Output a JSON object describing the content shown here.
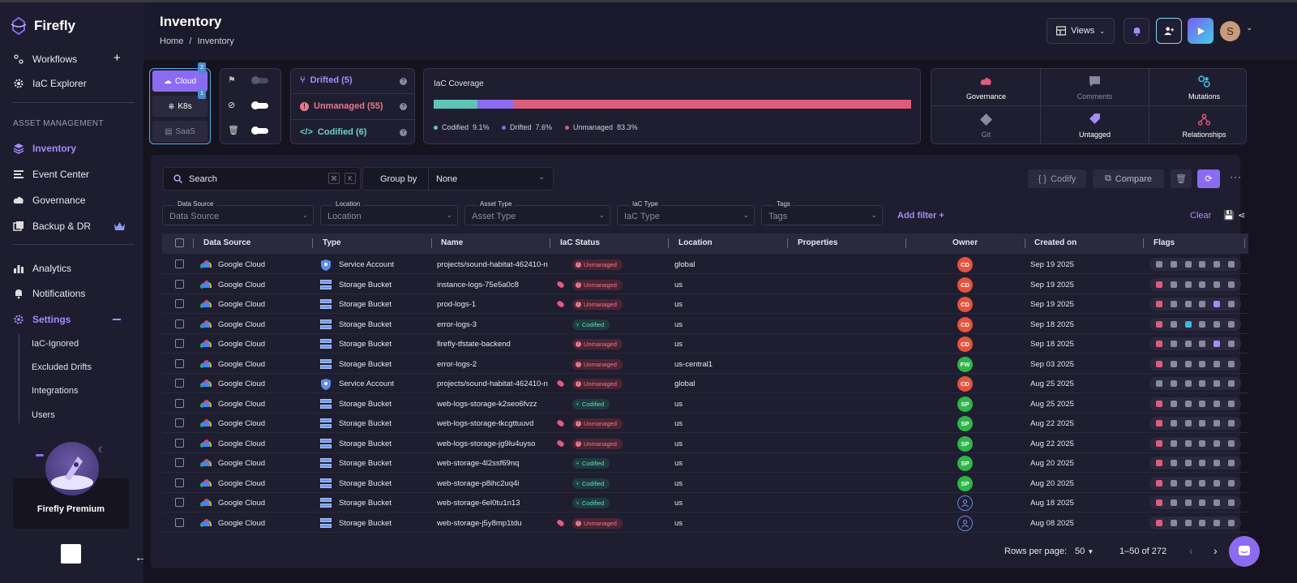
{
  "app": {
    "name": "Firefly"
  },
  "sidebar": {
    "top_items": [
      {
        "label": "Workflows"
      },
      {
        "label": "IaC Explorer"
      }
    ],
    "section_label": "ASSET MANAGEMENT",
    "items": [
      {
        "label": "Inventory"
      },
      {
        "label": "Event Center"
      },
      {
        "label": "Governance"
      },
      {
        "label": "Backup & DR"
      },
      {
        "label": "Analytics"
      },
      {
        "label": "Notifications"
      },
      {
        "label": "Settings"
      }
    ],
    "settings_sub": [
      {
        "label": "IaC-Ignored"
      },
      {
        "label": "Excluded Drifts"
      },
      {
        "label": "Integrations"
      },
      {
        "label": "Users"
      }
    ],
    "premium_label": "Firefly Premium"
  },
  "header": {
    "title": "Inventory",
    "breadcrumb": [
      "Home",
      "/",
      "Inventory"
    ],
    "views_label": "Views",
    "avatar_initial": "S"
  },
  "provider_pills": [
    {
      "label": "Cloud",
      "badge": "2"
    },
    {
      "label": "K8s",
      "badge": "1"
    },
    {
      "label": "SaaS"
    }
  ],
  "drift": {
    "drifted": "Drifted (5)",
    "unmanaged": "Unmanaged (55)",
    "codified": "Codified (6)"
  },
  "coverage": {
    "title": "IaC Coverage",
    "segments": [
      {
        "name": "Codified",
        "pct": 9.1,
        "color": "#5ec5b6",
        "label": "Codified",
        "value": "9.1%"
      },
      {
        "name": "Drifted",
        "pct": 7.6,
        "color": "#8b6cf0",
        "label": "Drifted",
        "value": "7.6%"
      },
      {
        "name": "Unmanaged",
        "pct": 83.3,
        "color": "#dc5c7a",
        "label": "Unmanaged",
        "value": "83.3%"
      }
    ]
  },
  "insights": [
    {
      "label": "Governance"
    },
    {
      "label": "Comments"
    },
    {
      "label": "Mutations"
    },
    {
      "label": "Git"
    },
    {
      "label": "Untagged"
    },
    {
      "label": "Relationships"
    }
  ],
  "toolbar": {
    "search_placeholder": "Search",
    "kbd1": "⌘",
    "kbd2": "K",
    "group_by_label": "Group by",
    "group_by_value": "None",
    "codify": "Codify",
    "compare": "Compare",
    "add_filter": "Add filter +",
    "clear": "Clear"
  },
  "filters": [
    {
      "label": "Data Source",
      "placeholder": "Data Source"
    },
    {
      "label": "Location",
      "placeholder": "Location"
    },
    {
      "label": "Asset Type",
      "placeholder": "Asset Type"
    },
    {
      "label": "IaC Type",
      "placeholder": "IaC Type"
    },
    {
      "label": "Tags",
      "placeholder": "Tags"
    }
  ],
  "columns": [
    "Data Source",
    "Type",
    "Name",
    "IaC Status",
    "Location",
    "Properties",
    "Owner",
    "Created on",
    "Flags"
  ],
  "rows": [
    {
      "source": "Google Cloud",
      "type": "Service Account",
      "name": "projects/sound-habitat-462410-n",
      "status": "Unmanaged",
      "tagged": false,
      "location": "global",
      "owner": "CD",
      "created": "Sep 19 2025"
    },
    {
      "source": "Google Cloud",
      "type": "Storage Bucket",
      "name": "instance-logs-75e5a0c8",
      "status": "Unmanaged",
      "tagged": true,
      "location": "us",
      "owner": "CD",
      "created": "Sep 19 2025"
    },
    {
      "source": "Google Cloud",
      "type": "Storage Bucket",
      "name": "prod-logs-1",
      "status": "Unmanaged",
      "tagged": true,
      "location": "us",
      "owner": "CD",
      "created": "Sep 19 2025"
    },
    {
      "source": "Google Cloud",
      "type": "Storage Bucket",
      "name": "error-logs-3",
      "status": "Codified",
      "tagged": false,
      "location": "us",
      "owner": "CD",
      "created": "Sep 18 2025"
    },
    {
      "source": "Google Cloud",
      "type": "Storage Bucket",
      "name": "firefly-tfstate-backend",
      "status": "Unmanaged",
      "tagged": false,
      "location": "us",
      "owner": "CD",
      "created": "Sep 18 2025"
    },
    {
      "source": "Google Cloud",
      "type": "Storage Bucket",
      "name": "error-logs-2",
      "status": "Unmanaged",
      "tagged": false,
      "location": "us-central1",
      "owner": "FW",
      "created": "Sep 03 2025"
    },
    {
      "source": "Google Cloud",
      "type": "Service Account",
      "name": "projects/sound-habitat-462410-n",
      "status": "Unmanaged",
      "tagged": true,
      "location": "global",
      "owner": "CD",
      "created": "Aug 25 2025"
    },
    {
      "source": "Google Cloud",
      "type": "Storage Bucket",
      "name": "web-logs-storage-k2seo6fvzz",
      "status": "Codified",
      "tagged": false,
      "location": "us",
      "owner": "SP",
      "created": "Aug 25 2025"
    },
    {
      "source": "Google Cloud",
      "type": "Storage Bucket",
      "name": "web-logs-storage-tkcgttuuvd",
      "status": "Unmanaged",
      "tagged": true,
      "location": "us",
      "owner": "SP",
      "created": "Aug 22 2025"
    },
    {
      "source": "Google Cloud",
      "type": "Storage Bucket",
      "name": "web-logs-storage-jg9lu4uyso",
      "status": "Unmanaged",
      "tagged": true,
      "location": "us",
      "owner": "SP",
      "created": "Aug 22 2025"
    },
    {
      "source": "Google Cloud",
      "type": "Storage Bucket",
      "name": "web-storage-4l2ssf69nq",
      "status": "Codified",
      "tagged": false,
      "location": "us",
      "owner": "SP",
      "created": "Aug 20 2025"
    },
    {
      "source": "Google Cloud",
      "type": "Storage Bucket",
      "name": "web-storage-p8ihc2uq4i",
      "status": "Codified",
      "tagged": false,
      "location": "us",
      "owner": "SP",
      "created": "Aug 20 2025"
    },
    {
      "source": "Google Cloud",
      "type": "Storage Bucket",
      "name": "web-storage-6el0tu1n13",
      "status": "Codified",
      "tagged": false,
      "location": "us",
      "owner": "",
      "created": "Aug 18 2025"
    },
    {
      "source": "Google Cloud",
      "type": "Storage Bucket",
      "name": "web-storage-j5y8mp1tdu",
      "status": "Unmanaged",
      "tagged": true,
      "location": "us",
      "owner": "",
      "created": "Aug 08 2025"
    }
  ],
  "pagination": {
    "rows_per_page_label": "Rows per page:",
    "rows_per_page": "50",
    "range": "1–50 of 272"
  }
}
